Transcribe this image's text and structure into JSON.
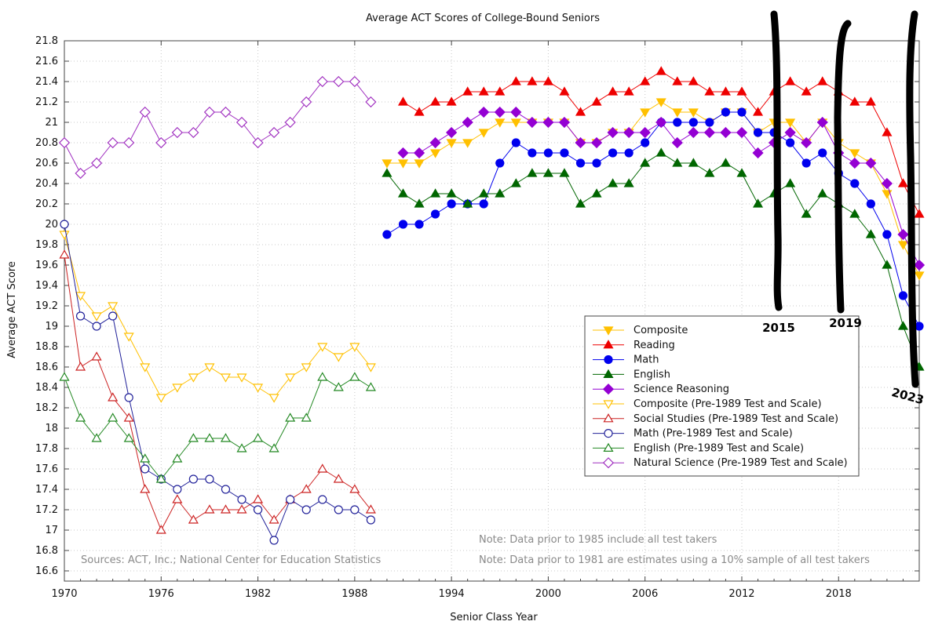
{
  "chart_data": {
    "type": "line",
    "title": "Average ACT Scores of College-Bound Seniors",
    "xlabel": "Senior Class Year",
    "ylabel": "Average ACT Score",
    "xlim": [
      1970,
      2023
    ],
    "ylim": [
      16.5,
      21.8
    ],
    "x_ticks": [
      1970,
      1976,
      1982,
      1988,
      1994,
      2000,
      2006,
      2012,
      2018
    ],
    "y_ticks": [
      16.6,
      16.8,
      17,
      17.2,
      17.4,
      17.6,
      17.8,
      18,
      18.2,
      18.4,
      18.6,
      18.8,
      19,
      19.2,
      19.4,
      19.6,
      19.8,
      20,
      20.2,
      20.4,
      20.6,
      20.8,
      21,
      21.2,
      21.4,
      21.6,
      21.8
    ],
    "grid": true,
    "legend_position": "lower-right",
    "series": [
      {
        "name": "Composite",
        "color": "#ffc000",
        "marker": "triangle-down",
        "filled": true,
        "x_start": 1990,
        "values": [
          20.6,
          20.6,
          20.6,
          20.7,
          20.8,
          20.8,
          20.9,
          21.0,
          21.0,
          21.0,
          21.0,
          21.0,
          20.8,
          20.8,
          20.9,
          20.9,
          21.1,
          21.2,
          21.1,
          21.1,
          21.0,
          21.1,
          21.1,
          20.9,
          21.0,
          21.0,
          20.8,
          21.0,
          20.8,
          20.7,
          20.6,
          20.3,
          19.8,
          19.5
        ]
      },
      {
        "name": "Reading",
        "color": "#ee0000",
        "marker": "triangle-up",
        "filled": true,
        "x_start": 1991,
        "values": [
          21.2,
          21.1,
          21.2,
          21.2,
          21.3,
          21.3,
          21.3,
          21.4,
          21.4,
          21.4,
          21.3,
          21.1,
          21.2,
          21.3,
          21.3,
          21.4,
          21.5,
          21.4,
          21.4,
          21.3,
          21.3,
          21.3,
          21.1,
          21.3,
          21.4,
          21.3,
          21.4,
          21.3,
          21.2,
          21.2,
          20.9,
          20.4,
          20.1
        ]
      },
      {
        "name": "Math",
        "color": "#0000ee",
        "marker": "circle",
        "filled": true,
        "x_start": 1990,
        "values": [
          19.9,
          20.0,
          20.0,
          20.1,
          20.2,
          20.2,
          20.2,
          20.6,
          20.8,
          20.7,
          20.7,
          20.7,
          20.6,
          20.6,
          20.7,
          20.7,
          20.8,
          21.0,
          21.0,
          21.0,
          21.0,
          21.1,
          21.1,
          20.9,
          20.9,
          20.8,
          20.6,
          20.7,
          20.5,
          20.4,
          20.2,
          19.9,
          19.3,
          19.0
        ]
      },
      {
        "name": "English",
        "color": "#006600",
        "marker": "triangle-up",
        "filled": true,
        "x_start": 1990,
        "values": [
          20.5,
          20.3,
          20.2,
          20.3,
          20.3,
          20.2,
          20.3,
          20.3,
          20.4,
          20.5,
          20.5,
          20.5,
          20.2,
          20.3,
          20.4,
          20.4,
          20.6,
          20.7,
          20.6,
          20.6,
          20.5,
          20.6,
          20.5,
          20.2,
          20.3,
          20.4,
          20.1,
          20.3,
          20.2,
          20.1,
          19.9,
          19.6,
          19.0,
          18.6
        ]
      },
      {
        "name": "Science Reasoning",
        "color": "#9400d3",
        "marker": "diamond",
        "filled": true,
        "x_start": 1991,
        "values": [
          20.7,
          20.7,
          20.8,
          20.9,
          21.0,
          21.1,
          21.1,
          21.1,
          21.0,
          21.0,
          21.0,
          20.8,
          20.8,
          20.9,
          20.9,
          20.9,
          21.0,
          20.8,
          20.9,
          20.9,
          20.9,
          20.9,
          20.7,
          20.8,
          20.9,
          20.8,
          21.0,
          20.7,
          20.6,
          20.6,
          20.4,
          19.9,
          19.6
        ]
      },
      {
        "name": "Composite (Pre-1989 Test and Scale)",
        "color": "#ffc000",
        "marker": "triangle-down",
        "filled": false,
        "x_start": 1970,
        "values": [
          19.9,
          19.3,
          19.1,
          19.2,
          18.9,
          18.6,
          18.3,
          18.4,
          18.5,
          18.6,
          18.5,
          18.5,
          18.4,
          18.3,
          18.5,
          18.6,
          18.8,
          18.7,
          18.8,
          18.6
        ]
      },
      {
        "name": "Social Studies (Pre-1989 Test and Scale)",
        "color": "#cc2222",
        "marker": "triangle-up",
        "filled": false,
        "x_start": 1970,
        "values": [
          19.7,
          18.6,
          18.7,
          18.3,
          18.1,
          17.4,
          17.0,
          17.3,
          17.1,
          17.2,
          17.2,
          17.2,
          17.3,
          17.1,
          17.3,
          17.4,
          17.6,
          17.5,
          17.4,
          17.2
        ]
      },
      {
        "name": "Math (Pre-1989 Test and Scale)",
        "color": "#22229a",
        "marker": "circle",
        "filled": false,
        "x_start": 1970,
        "values": [
          20.0,
          19.1,
          19.0,
          19.1,
          18.3,
          17.6,
          17.5,
          17.4,
          17.5,
          17.5,
          17.4,
          17.3,
          17.2,
          16.9,
          17.3,
          17.2,
          17.3,
          17.2,
          17.2,
          17.1
        ]
      },
      {
        "name": "English (Pre-1989 Test and Scale)",
        "color": "#228822",
        "marker": "triangle-up",
        "filled": false,
        "x_start": 1970,
        "values": [
          18.5,
          18.1,
          17.9,
          18.1,
          17.9,
          17.7,
          17.5,
          17.7,
          17.9,
          17.9,
          17.9,
          17.8,
          17.9,
          17.8,
          18.1,
          18.1,
          18.5,
          18.4,
          18.5,
          18.4
        ]
      },
      {
        "name": "Natural Science (Pre-1989 Test and Scale)",
        "color": "#a030c0",
        "marker": "diamond",
        "filled": false,
        "x_start": 1970,
        "values": [
          20.8,
          20.5,
          20.6,
          20.8,
          20.8,
          21.1,
          20.8,
          20.9,
          20.9,
          21.1,
          21.1,
          21.0,
          20.8,
          20.9,
          21.0,
          21.2,
          21.4,
          21.4,
          21.4,
          21.2
        ]
      }
    ],
    "notes": {
      "sources": "Sources: ACT, Inc.; National Center for Education Statistics",
      "note1": "Note: Data prior to 1985 include all test takers",
      "note2": "Note: Data prior to 1981 are estimates using a 10% sample of all test takers"
    },
    "annotations": [
      {
        "x": 2015,
        "label": "2015"
      },
      {
        "x": 2019,
        "label": "2019"
      },
      {
        "x": 2023,
        "label": "2023"
      }
    ]
  }
}
